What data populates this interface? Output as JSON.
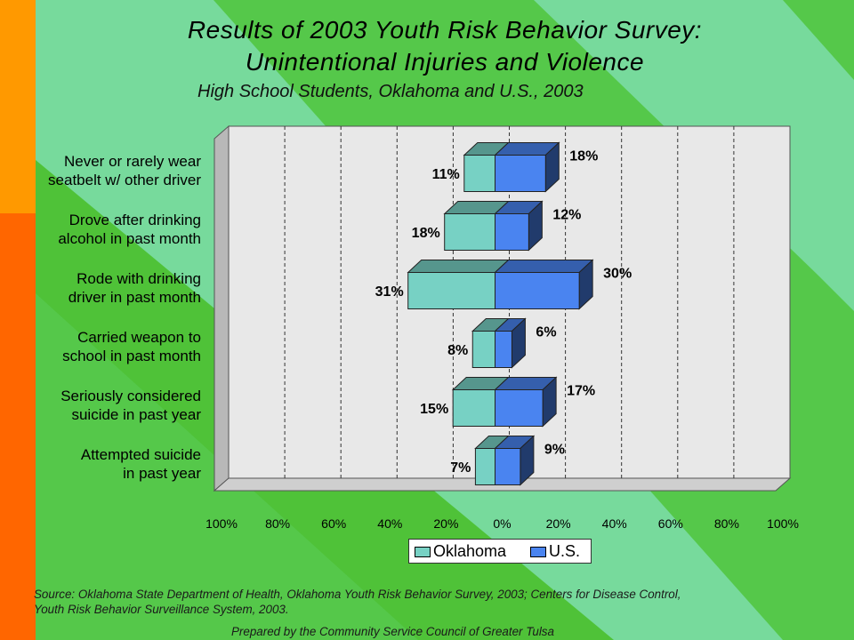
{
  "slide": {
    "title_line1": "Results of 2003 Youth Risk Behavior Survey:",
    "title_line2": "Unintentional Injuries and Violence",
    "subtitle": "High School Students, Oklahoma and U.S., 2003",
    "source_line1": "Source: Oklahoma State Department of Health, Oklahoma Youth Risk Behavior Survey, 2003; Centers for Disease Control,",
    "source_line2": "Youth Risk Behavior Surveillance System, 2003.",
    "prepared_by": "Prepared by the Community Service Council of Greater Tulsa",
    "colors": {
      "background_green": "#4fc238",
      "light_green_band": "#7ddc9c",
      "orange_bar": "#ff9900",
      "red_orange_bar": "#ff6600"
    }
  },
  "chart_data": {
    "type": "bar",
    "orientation": "horizontal-butterfly",
    "categories": [
      [
        "Never or rarely wear",
        "seatbelt w/ other driver"
      ],
      [
        "Drove after drinking",
        "alcohol in past month"
      ],
      [
        "Rode with drinking",
        "driver in past month"
      ],
      [
        "Carried weapon to",
        "school in past month"
      ],
      [
        "Seriously considered",
        "suicide in past year"
      ],
      [
        "Attempted suicide",
        "in past year"
      ]
    ],
    "series": [
      {
        "name": "Oklahoma",
        "side": "left",
        "color": "#77d1c4",
        "values": [
          11,
          18,
          31,
          8,
          15,
          7
        ],
        "labels": [
          "11%",
          "18%",
          "31%",
          "8%",
          "15%",
          "7%"
        ]
      },
      {
        "name": "U.S.",
        "side": "right",
        "color": "#4a84f0",
        "values": [
          18,
          12,
          30,
          6,
          17,
          9
        ],
        "labels": [
          "18%",
          "12%",
          "30%",
          "6%",
          "17%",
          "9%"
        ]
      }
    ],
    "xlim": [
      -100,
      100
    ],
    "xticks": [
      "100%",
      "80%",
      "60%",
      "40%",
      "20%",
      "0%",
      "20%",
      "40%",
      "60%",
      "80%",
      "100%"
    ],
    "grid": "vertical dashed",
    "legend_position": "bottom-center"
  }
}
